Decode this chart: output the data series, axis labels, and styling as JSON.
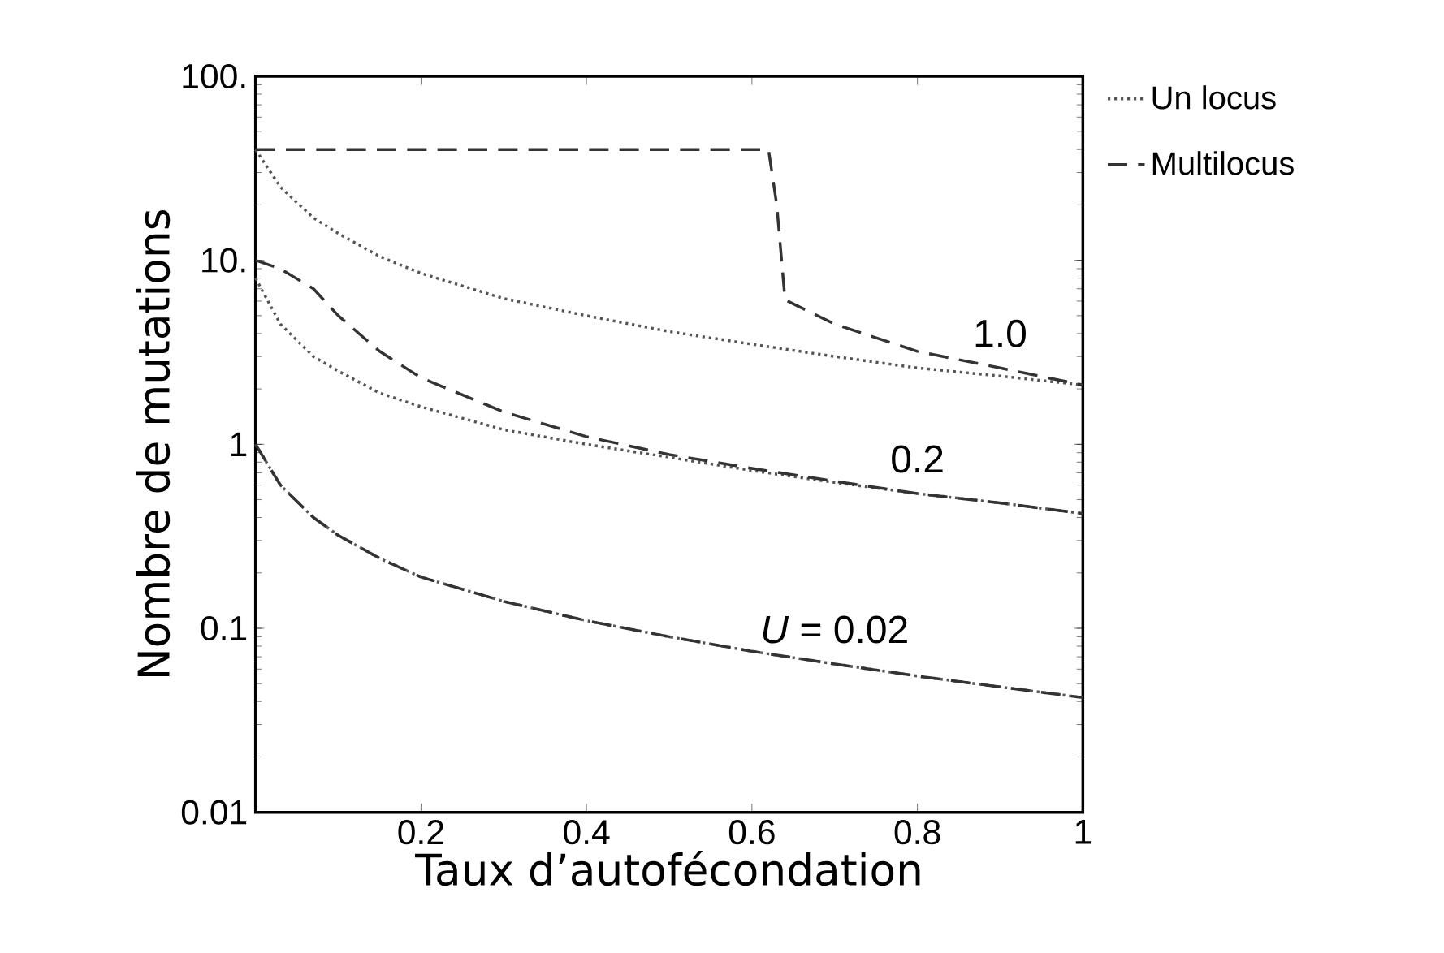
{
  "chart_data": {
    "type": "line",
    "xlabel": "Taux d’autofécondation",
    "ylabel": "Nombre de mutations",
    "xlim": [
      0,
      1
    ],
    "ylim": [
      0.01,
      100
    ],
    "log": "y",
    "xticks": [
      0.2,
      0.4,
      0.6,
      0.8,
      1
    ],
    "yticks": [
      0.01,
      0.1,
      1,
      {
        "value": 10,
        "label": "10."
      },
      {
        "value": 100,
        "label": "100."
      }
    ],
    "grid": false,
    "legend": "top right",
    "marker": "none",
    "series": [
      {
        "name": "Un locus",
        "color": "#555555",
        "line_style": "dotted",
        "x": [
          0,
          0.03,
          0.07,
          0.1,
          0.15,
          0.2,
          0.3,
          0.4,
          0.5,
          0.6,
          0.7,
          0.8,
          0.9,
          1
        ],
        "values": [
          40,
          25,
          17,
          14,
          10.5,
          8.5,
          6.2,
          5,
          4.1,
          3.5,
          3,
          2.6,
          2.35,
          2.1
        ]
      },
      {
        "name": "Multilocus",
        "color": "#333333",
        "line_style": "dashed",
        "x": [
          0,
          0.2,
          0.4,
          0.62,
          0.63,
          0.64,
          0.7,
          0.8,
          0.9,
          1
        ],
        "values": [
          40,
          40,
          40,
          40,
          20,
          6.1,
          4.5,
          3.2,
          2.6,
          2.1
        ]
      },
      {
        "color": "#555555",
        "line_style": "dotted",
        "x": [
          0,
          0.03,
          0.07,
          0.1,
          0.15,
          0.2,
          0.3,
          0.4,
          0.5,
          0.6,
          0.7,
          0.8,
          0.9,
          1
        ],
        "values": [
          8,
          4.5,
          3,
          2.5,
          1.9,
          1.6,
          1.2,
          1,
          0.85,
          0.72,
          0.62,
          0.54,
          0.48,
          0.42
        ]
      },
      {
        "color": "#333333",
        "line_style": "dashed",
        "x": [
          0,
          0.03,
          0.07,
          0.1,
          0.15,
          0.2,
          0.3,
          0.4,
          0.5,
          0.6,
          0.7,
          0.8,
          0.9,
          1
        ],
        "values": [
          10,
          9,
          7,
          5,
          3.2,
          2.3,
          1.5,
          1.1,
          0.88,
          0.74,
          0.63,
          0.54,
          0.48,
          0.42
        ]
      },
      {
        "color": "#555555",
        "line_style": "dotted",
        "x": [
          0,
          0.03,
          0.07,
          0.1,
          0.15,
          0.2,
          0.3,
          0.4,
          0.5,
          0.6,
          0.7,
          0.8,
          0.9,
          1
        ],
        "values": [
          1,
          0.6,
          0.4,
          0.32,
          0.24,
          0.19,
          0.14,
          0.11,
          0.09,
          0.075,
          0.064,
          0.055,
          0.048,
          0.042
        ]
      },
      {
        "color": "#333333",
        "line_style": "dashed",
        "x": [
          0,
          0.03,
          0.07,
          0.1,
          0.15,
          0.2,
          0.3,
          0.4,
          0.5,
          0.6,
          0.7,
          0.8,
          0.9,
          1
        ],
        "values": [
          1,
          0.6,
          0.4,
          0.32,
          0.24,
          0.19,
          0.14,
          0.11,
          0.09,
          0.075,
          0.064,
          0.055,
          0.048,
          0.042
        ]
      }
    ],
    "annotations": [
      "1.0",
      "0.2",
      "*U* = 0.02"
    ]
  }
}
